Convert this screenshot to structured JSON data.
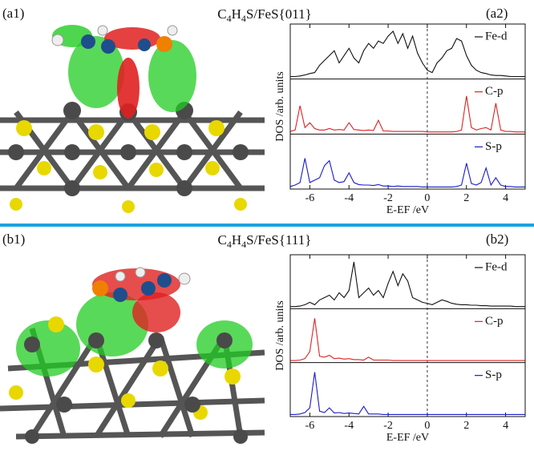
{
  "chart_data": [
    {
      "type": "line",
      "title": "C4H4S/FeS{011}",
      "image_label": "(a1)",
      "panel_label": "(a2)",
      "xlabel": "E-EF /eV",
      "ylabel": "DOS /arb. units",
      "xlim": [
        -7,
        5
      ],
      "xticks": [
        -6,
        -4,
        -2,
        0,
        2,
        4
      ],
      "ylim": [
        0,
        1
      ],
      "x": [
        -7,
        -6.75,
        -6.5,
        -6.25,
        -6,
        -5.75,
        -5.5,
        -5.25,
        -5,
        -4.75,
        -4.5,
        -4.25,
        -4,
        -3.75,
        -3.5,
        -3.25,
        -3,
        -2.75,
        -2.5,
        -2.25,
        -2,
        -1.75,
        -1.5,
        -1.25,
        -1,
        -0.75,
        -0.5,
        -0.25,
        0,
        0.25,
        0.5,
        0.75,
        1,
        1.25,
        1.5,
        1.75,
        2,
        2.25,
        2.5,
        2.75,
        3,
        3.25,
        3.5,
        3.75,
        4,
        4.25,
        4.5,
        4.75,
        5
      ],
      "series": [
        {
          "name": "Fe-d",
          "color": "#111111",
          "values": [
            0.02,
            0.02,
            0.03,
            0.05,
            0.08,
            0.1,
            0.25,
            0.35,
            0.45,
            0.55,
            0.3,
            0.45,
            0.6,
            0.4,
            0.3,
            0.55,
            0.7,
            0.6,
            0.75,
            0.7,
            0.85,
            0.95,
            0.7,
            0.9,
            0.6,
            0.85,
            0.5,
            0.3,
            0.15,
            0.1,
            0.3,
            0.4,
            0.55,
            0.6,
            0.8,
            0.75,
            0.45,
            0.25,
            0.15,
            0.1,
            0.08,
            0.05,
            0.04,
            0.04,
            0.03,
            0.02,
            0.02,
            0.02,
            0.02
          ]
        },
        {
          "name": "C-p",
          "color": "#dd2222",
          "values": [
            0.02,
            0.05,
            0.55,
            0.1,
            0.2,
            0.08,
            0.05,
            0.05,
            0.08,
            0.05,
            0.06,
            0.05,
            0.2,
            0.06,
            0.05,
            0.04,
            0.05,
            0.04,
            0.25,
            0.03,
            0.03,
            0.02,
            0.02,
            0.02,
            0.02,
            0.02,
            0.02,
            0.02,
            0.01,
            0.01,
            0.01,
            0.01,
            0.01,
            0.01,
            0.02,
            0.05,
            0.75,
            0.1,
            0.05,
            0.08,
            0.1,
            0.05,
            0.6,
            0.05,
            0.02,
            0.02,
            0.01,
            0.01,
            0.01
          ]
        },
        {
          "name": "S-p",
          "color": "#1a1acc",
          "values": [
            0.02,
            0.05,
            0.1,
            0.6,
            0.1,
            0.15,
            0.2,
            0.45,
            0.55,
            0.15,
            0.1,
            0.12,
            0.3,
            0.1,
            0.06,
            0.05,
            0.05,
            0.04,
            0.06,
            0.03,
            0.03,
            0.02,
            0.03,
            0.02,
            0.02,
            0.02,
            0.02,
            0.01,
            0.01,
            0.01,
            0.01,
            0.01,
            0.01,
            0.01,
            0.02,
            0.05,
            0.5,
            0.08,
            0.05,
            0.1,
            0.4,
            0.05,
            0.2,
            0.05,
            0.02,
            0.02,
            0.01,
            0.01,
            0.01
          ]
        }
      ]
    },
    {
      "type": "line",
      "title": "C4H4S/FeS{111}",
      "image_label": "(b1)",
      "panel_label": "(b2)",
      "xlabel": "E-EF /eV",
      "ylabel": "DOS /arb. units",
      "xlim": [
        -7,
        5
      ],
      "xticks": [
        -6,
        -4,
        -2,
        0,
        2,
        4
      ],
      "ylim": [
        0,
        1
      ],
      "x": [
        -7,
        -6.75,
        -6.5,
        -6.25,
        -6,
        -5.75,
        -5.5,
        -5.25,
        -5,
        -4.75,
        -4.5,
        -4.25,
        -4,
        -3.75,
        -3.5,
        -3.25,
        -3,
        -2.75,
        -2.5,
        -2.25,
        -2,
        -1.75,
        -1.5,
        -1.25,
        -1,
        -0.75,
        -0.5,
        -0.25,
        0,
        0.25,
        0.5,
        0.75,
        1,
        1.25,
        1.5,
        1.75,
        2,
        2.25,
        2.5,
        2.75,
        3,
        3.25,
        3.5,
        3.75,
        4,
        4.25,
        4.5,
        4.75,
        5
      ],
      "series": [
        {
          "name": "Fe-d",
          "color": "#111111",
          "values": [
            0.01,
            0.01,
            0.02,
            0.05,
            0.1,
            0.05,
            0.15,
            0.2,
            0.25,
            0.15,
            0.3,
            0.2,
            0.35,
            0.95,
            0.2,
            0.3,
            0.4,
            0.25,
            0.35,
            0.2,
            0.5,
            0.75,
            0.45,
            0.7,
            0.55,
            0.2,
            0.15,
            0.1,
            0.08,
            0.05,
            0.1,
            0.15,
            0.12,
            0.08,
            0.06,
            0.05,
            0.05,
            0.04,
            0.04,
            0.03,
            0.03,
            0.02,
            0.02,
            0.02,
            0.02,
            0.02,
            0.01,
            0.01,
            0.01
          ]
        },
        {
          "name": "C-p",
          "color": "#dd2222",
          "values": [
            0.01,
            0.01,
            0.02,
            0.05,
            0.2,
            0.9,
            0.1,
            0.08,
            0.12,
            0.05,
            0.06,
            0.04,
            0.05,
            0.03,
            0.03,
            0.02,
            0.08,
            0.02,
            0.02,
            0.02,
            0.02,
            0.01,
            0.01,
            0.01,
            0.01,
            0.01,
            0.01,
            0.01,
            0.01,
            0.01,
            0.01,
            0.01,
            0.01,
            0.01,
            0.01,
            0.01,
            0.01,
            0.01,
            0.01,
            0.01,
            0.01,
            0.01,
            0.01,
            0.01,
            0.01,
            0.01,
            0.01,
            0.01,
            0.01
          ]
        },
        {
          "name": "S-p",
          "color": "#1a1acc",
          "values": [
            0.01,
            0.01,
            0.02,
            0.05,
            0.15,
            0.9,
            0.08,
            0.05,
            0.15,
            0.04,
            0.05,
            0.03,
            0.04,
            0.03,
            0.02,
            0.18,
            0.02,
            0.02,
            0.02,
            0.01,
            0.01,
            0.01,
            0.01,
            0.01,
            0.01,
            0.01,
            0.01,
            0.01,
            0.01,
            0.01,
            0.01,
            0.01,
            0.01,
            0.01,
            0.01,
            0.01,
            0.01,
            0.01,
            0.01,
            0.01,
            0.01,
            0.01,
            0.01,
            0.01,
            0.01,
            0.01,
            0.01,
            0.01,
            0.01
          ]
        }
      ]
    }
  ]
}
